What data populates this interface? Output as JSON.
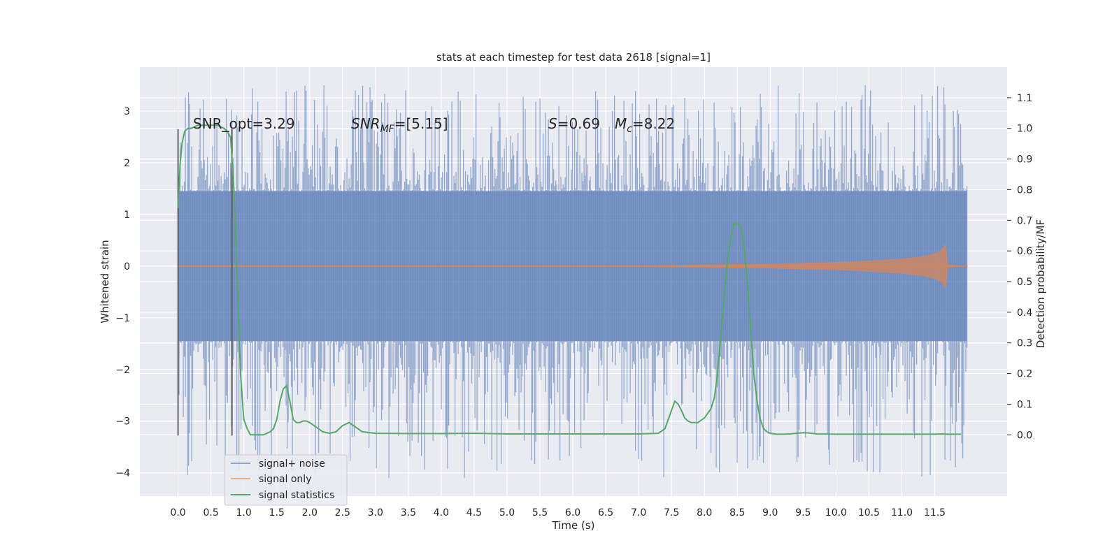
{
  "chart_data": {
    "type": "line",
    "title": "stats at each timestep for test data 2618 [signal=1]",
    "xlabel": "Time (s)",
    "ylabel": "Whitened strain",
    "y2label": "Detection probability/MF",
    "xlim": [
      -0.58,
      12.6
    ],
    "ylim": [
      -4.45,
      3.85
    ],
    "y2lim": [
      -0.2,
      1.2
    ],
    "x_ticks": [
      "0.0",
      "0.5",
      "1.0",
      "1.5",
      "2.0",
      "2.5",
      "3.0",
      "3.5",
      "4.0",
      "4.5",
      "5.0",
      "5.5",
      "6.0",
      "6.5",
      "7.0",
      "7.5",
      "8.0",
      "8.5",
      "9.0",
      "9.5",
      "10.0",
      "10.5",
      "11.0",
      "11.5"
    ],
    "y_ticks": [
      "3",
      "2",
      "1",
      "0",
      "−1",
      "−2",
      "−3",
      "−4"
    ],
    "y2_ticks": [
      "1.1",
      "1.0",
      "0.9",
      "0.8",
      "0.7",
      "0.6",
      "0.5",
      "0.4",
      "0.3",
      "0.2",
      "0.1",
      "0.0"
    ],
    "grid": true,
    "legend_position": "lower-left",
    "annotations": {
      "snr_opt": "SNR_opt=3.29",
      "snr_mf_sym": "SNR",
      "snr_mf_sub": "MF",
      "snr_mf_val": "=[5.15]",
      "s_sym": "S",
      "s_val": "=0.69",
      "mc_sym": "M",
      "mc_sub": "c",
      "mc_val": "=8.22"
    },
    "vlines_x": [
      0.0,
      0.82
    ],
    "vlines_y_range": [
      -3.28,
      2.65
    ],
    "series": [
      {
        "name": "signal+ noise",
        "color": "#4c72b0",
        "axis": "left",
        "band_x_range": [
          0.0,
          11.99
        ],
        "band_core": [
          -1.45,
          1.45
        ],
        "band_extremes": [
          -4.1,
          3.5
        ]
      },
      {
        "name": "signal only",
        "color": "#dd8452",
        "axis": "left",
        "x": [
          0.0,
          7.0,
          8.0,
          9.0,
          10.0,
          10.5,
          11.0,
          11.3,
          11.5,
          11.6,
          11.66,
          11.7,
          12.0
        ],
        "envelope": [
          0.01,
          0.01,
          0.02,
          0.04,
          0.07,
          0.1,
          0.14,
          0.18,
          0.24,
          0.3,
          0.42,
          0.02,
          0.0
        ]
      },
      {
        "name": "signal statistics",
        "color": "#55a868",
        "axis": "right",
        "x": [
          0.0,
          0.03,
          0.06,
          0.1,
          0.15,
          0.2,
          0.3,
          0.4,
          0.5,
          0.6,
          0.7,
          0.75,
          0.8,
          0.85,
          0.9,
          0.95,
          1.0,
          1.05,
          1.1,
          1.2,
          1.3,
          1.4,
          1.45,
          1.5,
          1.55,
          1.6,
          1.65,
          1.7,
          1.75,
          1.8,
          1.85,
          1.9,
          1.95,
          2.0,
          2.1,
          2.2,
          2.3,
          2.4,
          2.5,
          2.6,
          2.7,
          2.8,
          3.0,
          3.5,
          4.0,
          4.5,
          5.0,
          6.0,
          7.0,
          7.3,
          7.4,
          7.45,
          7.5,
          7.55,
          7.6,
          7.65,
          7.7,
          7.75,
          7.8,
          7.9,
          8.0,
          8.1,
          8.15,
          8.2,
          8.25,
          8.3,
          8.35,
          8.4,
          8.45,
          8.5,
          8.55,
          8.6,
          8.65,
          8.7,
          8.75,
          8.8,
          8.85,
          8.9,
          8.95,
          9.0,
          9.1,
          9.2,
          9.3,
          9.4,
          9.5,
          9.6,
          9.7,
          10.0,
          11.0,
          11.5,
          11.6,
          11.7,
          11.9
        ],
        "values": [
          0.74,
          0.88,
          0.95,
          0.99,
          1.0,
          1.0,
          1.01,
          1.01,
          1.01,
          1.01,
          1.0,
          0.99,
          0.97,
          0.8,
          0.5,
          0.2,
          0.05,
          0.02,
          0.0,
          0.0,
          0.0,
          0.01,
          0.02,
          0.05,
          0.11,
          0.15,
          0.16,
          0.11,
          0.05,
          0.04,
          0.04,
          0.045,
          0.045,
          0.04,
          0.025,
          0.01,
          0.005,
          0.01,
          0.03,
          0.04,
          0.025,
          0.01,
          0.005,
          0.004,
          0.004,
          0.005,
          0.003,
          0.003,
          0.003,
          0.005,
          0.02,
          0.05,
          0.08,
          0.11,
          0.1,
          0.08,
          0.055,
          0.045,
          0.04,
          0.04,
          0.055,
          0.085,
          0.12,
          0.2,
          0.32,
          0.45,
          0.57,
          0.64,
          0.69,
          0.69,
          0.68,
          0.62,
          0.5,
          0.35,
          0.2,
          0.11,
          0.05,
          0.02,
          0.01,
          0.005,
          0.002,
          0.002,
          0.003,
          0.005,
          0.007,
          0.006,
          0.003,
          0.002,
          0.002,
          0.002,
          0.003,
          0.002,
          0.002
        ]
      }
    ]
  }
}
